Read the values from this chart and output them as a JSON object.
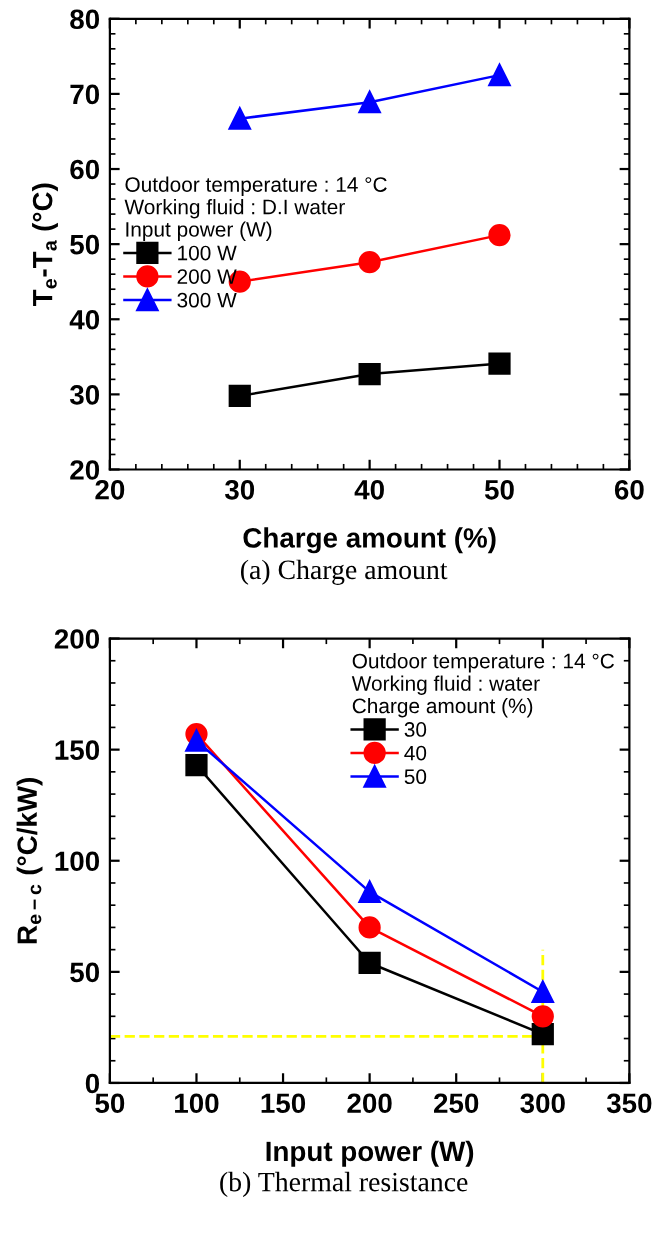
{
  "chart_data": [
    {
      "type": "line",
      "xlabel": "Charge amount (%)",
      "ylabel": "T$_{e}$-T$_{a}$ (°C)",
      "legend_title": "Outdoor temperature : 14 °C\nWorking fluid : D.I water\nInput power (W)",
      "x": [
        30,
        40,
        50
      ],
      "xlim": [
        20,
        60
      ],
      "xticks": [
        20,
        30,
        40,
        50,
        60
      ],
      "ylim": [
        20,
        80
      ],
      "yticks": [
        20,
        30,
        40,
        50,
        60,
        70,
        80
      ],
      "grid": false,
      "legend": "center left",
      "series": [
        {
          "name": "100 W",
          "color": "#000000",
          "marker": "square",
          "values": [
            29.8,
            32.7,
            34.1
          ]
        },
        {
          "name": "200 W",
          "color": "#ff0000",
          "marker": "circle",
          "values": [
            45.0,
            47.6,
            51.2
          ]
        },
        {
          "name": "300 W",
          "color": "#0000ff",
          "marker": "triangle",
          "values": [
            66.7,
            68.9,
            72.5
          ]
        }
      ],
      "annotations": [
        "(a) Charge amount"
      ]
    },
    {
      "type": "line",
      "xlabel": "Input power (W)",
      "ylabel": "R$_{e−c}$ (°C/kW)",
      "legend_title": "Outdoor temperature : 14 °C\nWorking fluid : water\nCharge amount (%)",
      "x": [
        100,
        200,
        300
      ],
      "xlim": [
        50,
        350
      ],
      "xticks": [
        50,
        100,
        150,
        200,
        250,
        300,
        350
      ],
      "ylim": [
        0,
        200
      ],
      "yticks": [
        0,
        50,
        100,
        150,
        200
      ],
      "grid": false,
      "legend": "top right",
      "series": [
        {
          "name": "30",
          "color": "#000000",
          "marker": "square",
          "values": [
            143,
            54,
            22
          ]
        },
        {
          "name": "40",
          "color": "#ff0000",
          "marker": "circle",
          "values": [
            157,
            70,
            30
          ]
        },
        {
          "name": "50",
          "color": "#0000ff",
          "marker": "triangle",
          "values": [
            154,
            86,
            41
          ]
        }
      ],
      "ref_lines": [
        {
          "axis": "y",
          "value": 21,
          "color": "#ffff00",
          "line_style": "dashed"
        },
        {
          "axis": "x",
          "value": 300,
          "color": "#ffff00",
          "line_style": "dashed"
        }
      ],
      "annotations": [
        "(b) Thermal resistance"
      ]
    }
  ]
}
